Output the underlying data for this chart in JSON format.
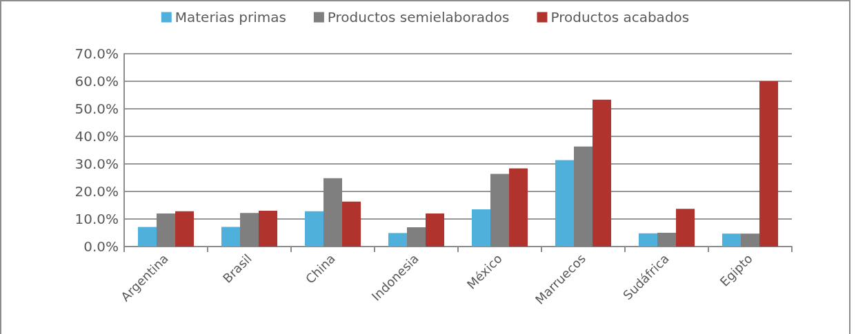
{
  "chart_data": {
    "type": "bar",
    "categories": [
      "Argentina",
      "Brasil",
      "China",
      "Indonesia",
      "México",
      "Marruecos",
      "Sudáfrica",
      "Egipto"
    ],
    "series": [
      {
        "name": "Materias primas",
        "color": "#4fb0dc",
        "values": [
          7.1,
          7.1,
          12.8,
          4.9,
          13.5,
          31.4,
          4.8,
          4.7
        ]
      },
      {
        "name": "Productos semielaborados",
        "color": "#7f7f7f",
        "values": [
          12.0,
          12.2,
          24.8,
          7.0,
          26.4,
          36.3,
          5.0,
          4.7
        ]
      },
      {
        "name": "Productos acabados",
        "color": "#b0342d",
        "values": [
          12.8,
          13.0,
          16.3,
          12.0,
          28.4,
          53.3,
          13.7,
          60.0
        ]
      }
    ],
    "ylim": [
      0,
      70
    ],
    "yticks": [
      {
        "value": 0,
        "label": "0.0%"
      },
      {
        "value": 10,
        "label": "10.0%"
      },
      {
        "value": 20,
        "label": "20.0%"
      },
      {
        "value": 30,
        "label": "30.0%"
      },
      {
        "value": 40,
        "label": "40.0%"
      },
      {
        "value": 50,
        "label": "50.0%"
      },
      {
        "value": 60,
        "label": "60.0%"
      },
      {
        "value": 70,
        "label": "70.0%"
      }
    ],
    "grid": "y",
    "legend": "top"
  }
}
